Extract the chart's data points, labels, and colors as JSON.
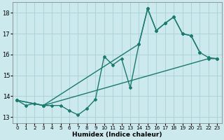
{
  "xlabel": "Humidex (Indice chaleur)",
  "xlim": [
    -0.5,
    23.5
  ],
  "ylim": [
    12.7,
    18.5
  ],
  "yticks": [
    13,
    14,
    15,
    16,
    17,
    18
  ],
  "xticks": [
    0,
    1,
    2,
    3,
    4,
    5,
    6,
    7,
    8,
    9,
    10,
    11,
    12,
    13,
    14,
    15,
    16,
    17,
    18,
    19,
    20,
    21,
    22,
    23
  ],
  "bg_color": "#cce9ee",
  "grid_color": "#aacfd8",
  "line_color": "#1a7a6e",
  "series": [
    {
      "x": [
        0,
        1,
        2,
        3,
        4,
        5,
        6,
        7,
        8,
        9,
        10,
        11,
        12,
        13,
        14,
        15,
        16,
        17,
        18,
        19,
        20,
        21
      ],
      "y": [
        13.8,
        13.55,
        13.65,
        13.55,
        13.55,
        13.55,
        13.3,
        13.1,
        13.4,
        13.85,
        15.9,
        15.5,
        15.8,
        14.4,
        16.5,
        18.2,
        17.15,
        17.5,
        17.8,
        17.0,
        16.9,
        16.1
      ]
    },
    {
      "x": [
        0,
        3,
        14,
        15,
        16,
        17,
        18,
        19,
        20,
        21,
        22,
        23
      ],
      "y": [
        13.8,
        13.55,
        16.5,
        18.2,
        17.15,
        17.5,
        17.8,
        17.0,
        16.9,
        16.1,
        15.85,
        15.8
      ]
    },
    {
      "x": [
        0,
        3,
        22,
        23
      ],
      "y": [
        13.8,
        13.55,
        15.8,
        15.8
      ]
    }
  ],
  "line_width": 1.0,
  "marker": "D",
  "marker_size": 2.0
}
